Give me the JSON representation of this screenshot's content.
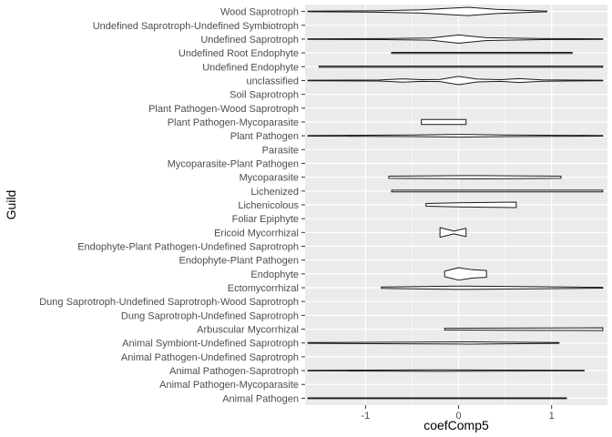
{
  "chart_data": {
    "type": "violin",
    "orientation": "horizontal",
    "xlabel": "coefComp5",
    "ylabel": "Guild",
    "xlim": [
      -1.65,
      1.6
    ],
    "xticks": [
      -1,
      0,
      1
    ],
    "xtick_labels": [
      "-1",
      "0",
      "1"
    ],
    "grid": true,
    "background": "#ebebeb",
    "grid_color": "#ffffff",
    "line_color": "#1a1a1a",
    "categories": [
      "Wood Saprotroph",
      "Undefined Saprotroph-Undefined Symbiotroph",
      "Undefined Saprotroph",
      "Undefined Root Endophyte",
      "Undefined Endophyte",
      "unclassified",
      "Soil Saprotroph",
      "Plant Pathogen-Wood Saprotroph",
      "Plant Pathogen-Mycoparasite",
      "Plant Pathogen",
      "Parasite",
      "Mycoparasite-Plant Pathogen",
      "Mycoparasite",
      "Lichenized",
      "Lichenicolous",
      "Foliar Epiphyte",
      "Ericoid Mycorrhizal",
      "Endophyte-Plant Pathogen-Undefined Saprotroph",
      "Endophyte-Plant Pathogen",
      "Endophyte",
      "Ectomycorrhizal",
      "Dung Saprotroph-Undefined Saprotroph-Wood Saprotroph",
      "Dung Saprotroph-Undefined Saprotroph",
      "Arbuscular Mycorrhizal",
      "Animal Symbiont-Undefined Saprotroph",
      "Animal Pathogen-Undefined Saprotroph",
      "Animal Pathogen-Saprotroph",
      "Animal Pathogen-Mycoparasite",
      "Animal Pathogen"
    ],
    "violins": [
      {
        "min": -1.62,
        "max": 0.95,
        "density": [
          [
            -1.62,
            0.02
          ],
          [
            -0.9,
            0.05
          ],
          [
            -0.4,
            0.12
          ],
          [
            0.1,
            0.3
          ],
          [
            0.4,
            0.15
          ],
          [
            0.95,
            0.02
          ]
        ]
      },
      null,
      {
        "min": -1.62,
        "max": 1.55,
        "density": [
          [
            -1.62,
            0.02
          ],
          [
            -0.8,
            0.04
          ],
          [
            -0.3,
            0.08
          ],
          [
            0.0,
            0.3
          ],
          [
            0.3,
            0.1
          ],
          [
            0.9,
            0.04
          ],
          [
            1.55,
            0.02
          ]
        ]
      },
      {
        "min": -0.72,
        "max": 1.22,
        "density": [
          [
            -0.72,
            0.04
          ],
          [
            1.22,
            0.04
          ]
        ]
      },
      {
        "min": -1.5,
        "max": 1.55,
        "density": [
          [
            -1.5,
            0.04
          ],
          [
            1.55,
            0.04
          ]
        ]
      },
      {
        "min": -1.62,
        "max": 1.55,
        "density": [
          [
            -1.62,
            0.02
          ],
          [
            -0.85,
            0.04
          ],
          [
            -0.6,
            0.12
          ],
          [
            -0.4,
            0.06
          ],
          [
            -0.2,
            0.08
          ],
          [
            0.0,
            0.3
          ],
          [
            0.2,
            0.1
          ],
          [
            0.45,
            0.06
          ],
          [
            0.65,
            0.14
          ],
          [
            0.9,
            0.05
          ],
          [
            1.55,
            0.02
          ]
        ]
      },
      null,
      null,
      {
        "min": -0.4,
        "max": 0.08,
        "density": [
          [
            -0.4,
            0.18
          ],
          [
            0.08,
            0.18
          ]
        ],
        "square": true
      },
      {
        "min": -1.62,
        "max": 1.55,
        "density": [
          [
            -1.62,
            0.02
          ],
          [
            -0.5,
            0.06
          ],
          [
            0.0,
            0.1
          ],
          [
            0.5,
            0.06
          ],
          [
            1.55,
            0.02
          ]
        ]
      },
      null,
      null,
      {
        "min": -0.75,
        "max": 1.1,
        "density": [
          [
            -0.75,
            0.08
          ],
          [
            0.2,
            0.12
          ],
          [
            1.1,
            0.08
          ]
        ]
      },
      {
        "min": -0.72,
        "max": 1.55,
        "density": [
          [
            -0.72,
            0.06
          ],
          [
            1.55,
            0.06
          ]
        ]
      },
      {
        "min": -0.35,
        "max": 0.62,
        "density": [
          [
            -0.35,
            0.1
          ],
          [
            0.1,
            0.16
          ],
          [
            0.62,
            0.2
          ]
        ],
        "square": true
      },
      null,
      {
        "min": -0.2,
        "max": 0.08,
        "density": [
          [
            -0.2,
            0.35
          ],
          [
            -0.05,
            0.1
          ],
          [
            0.08,
            0.3
          ]
        ],
        "square": true
      },
      null,
      null,
      {
        "min": -0.15,
        "max": 0.3,
        "density": [
          [
            -0.15,
            0.2
          ],
          [
            0.0,
            0.45
          ],
          [
            0.15,
            0.3
          ],
          [
            0.3,
            0.25
          ]
        ],
        "square": true
      },
      {
        "min": -0.83,
        "max": 1.55,
        "density": [
          [
            -0.83,
            0.05
          ],
          [
            0.0,
            0.12
          ],
          [
            0.8,
            0.08
          ],
          [
            1.55,
            0.03
          ]
        ]
      },
      null,
      null,
      {
        "min": -0.15,
        "max": 1.55,
        "density": [
          [
            -0.15,
            0.06
          ],
          [
            0.5,
            0.08
          ],
          [
            1.55,
            0.1
          ]
        ],
        "square": true
      },
      {
        "min": -1.62,
        "max": 1.08,
        "density": [
          [
            -1.62,
            0.03
          ],
          [
            0.1,
            0.08
          ],
          [
            1.08,
            0.03
          ]
        ]
      },
      null,
      {
        "min": -1.62,
        "max": 1.35,
        "density": [
          [
            -1.62,
            0.02
          ],
          [
            -0.2,
            0.05
          ],
          [
            1.35,
            0.02
          ]
        ]
      },
      null,
      {
        "min": -1.62,
        "max": 1.16,
        "density": [
          [
            -1.62,
            0.03
          ],
          [
            1.16,
            0.03
          ]
        ]
      }
    ]
  }
}
